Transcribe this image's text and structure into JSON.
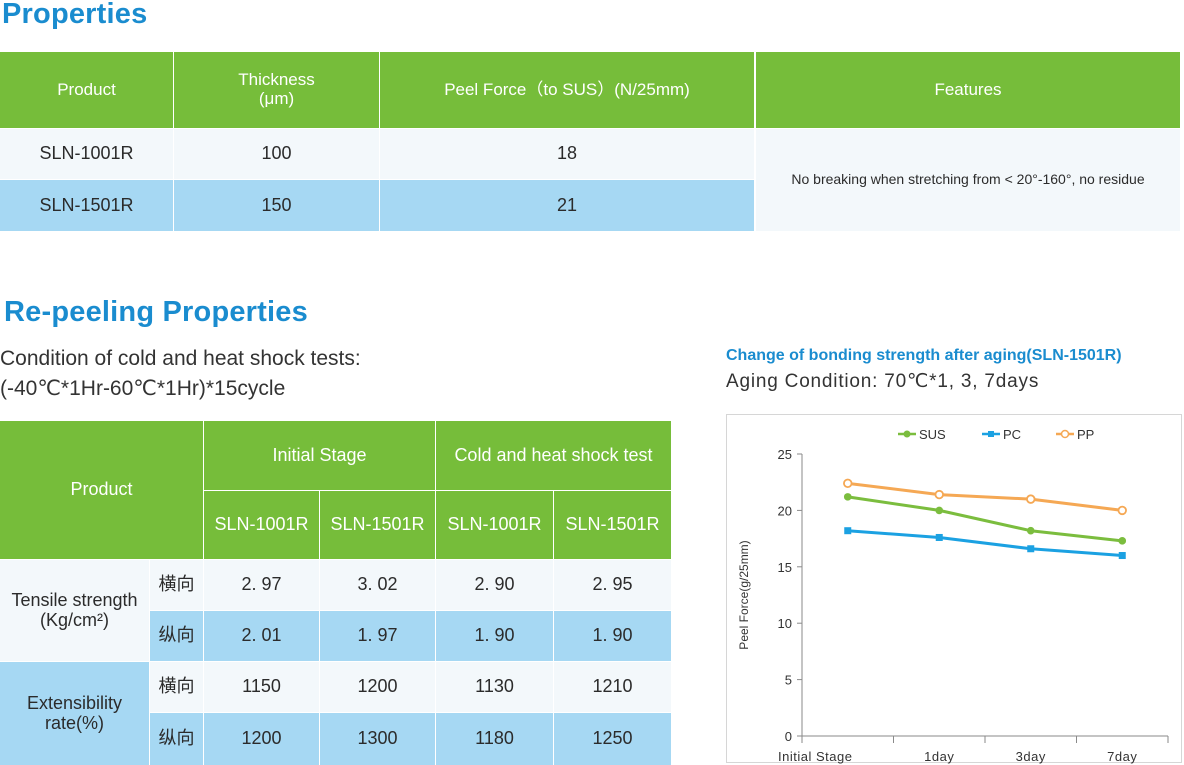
{
  "properties": {
    "title": "Properties",
    "headers": {
      "product": "Product",
      "thickness": "Thickness",
      "thickness_unit": "(μm)",
      "peel": "Peel Force（to SUS）(N/25mm)",
      "features": "Features"
    },
    "rows": [
      {
        "product": "SLN-1001R",
        "thickness": "100",
        "peel": "18"
      },
      {
        "product": "SLN-1501R",
        "thickness": "150",
        "peel": "21"
      }
    ],
    "features_text": "No breaking when stretching from < 20°-160°, no residue"
  },
  "repeeling": {
    "title": "Re-peeling Properties",
    "condition_line1": "Condition of cold and heat shock tests:",
    "condition_line2": "(-40℃*1Hr-60℃*1Hr)*15cycle",
    "headers": {
      "product": "Product",
      "initial": "Initial Stage",
      "shock": "Cold and heat shock test",
      "sub": [
        "SLN-1001R",
        "SLN-1501R",
        "SLN-1001R",
        "SLN-1501R"
      ]
    },
    "groups": [
      {
        "label": "Tensile strength",
        "unit": "(Kg/cm²)",
        "rows": [
          {
            "dir": "横向",
            "values": [
              "2. 97",
              "3. 02",
              "2. 90",
              "2. 95"
            ]
          },
          {
            "dir": "纵向",
            "values": [
              "2. 01",
              "1. 97",
              "1. 90",
              "1. 90"
            ]
          }
        ]
      },
      {
        "label": "Extensibility",
        "unit": "rate(%)",
        "rows": [
          {
            "dir": "横向",
            "values": [
              "1150",
              "1200",
              "1130",
              "1210"
            ]
          },
          {
            "dir": "纵向",
            "values": [
              "1200",
              "1300",
              "1180",
              "1250"
            ]
          }
        ]
      }
    ]
  },
  "chart_heading": {
    "title": "Change of bonding strength after aging(SLN-1501R)",
    "subtitle": "Aging Condition: 70℃*1, 3, 7days"
  },
  "chart_data": {
    "type": "line",
    "title": "Change of bonding strength after aging(SLN-1501R)",
    "xlabel": "",
    "ylabel": "Peel Force(g/25mm)",
    "categories": [
      "Initial Stage",
      "1day",
      "3day",
      "7day"
    ],
    "ylim": [
      0,
      25
    ],
    "yticks": [
      0,
      5,
      10,
      15,
      20,
      25
    ],
    "grid": false,
    "legend": "top",
    "series": [
      {
        "name": "SUS",
        "values": [
          21.2,
          20.0,
          18.2,
          17.3
        ],
        "color": "#7bbd3e",
        "marker": "circle-filled"
      },
      {
        "name": "PC",
        "values": [
          18.2,
          17.6,
          16.6,
          16.0
        ],
        "color": "#1ba1e2",
        "marker": "square-filled"
      },
      {
        "name": "PP",
        "values": [
          22.4,
          21.4,
          21.0,
          20.0
        ],
        "color": "#f5a854",
        "marker": "circle-open"
      }
    ]
  }
}
